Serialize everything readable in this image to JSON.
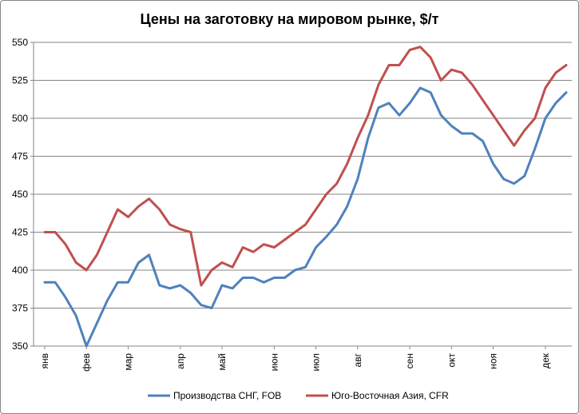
{
  "chart_data": {
    "type": "line",
    "title": "Цены на заготовку  на мировом рынке, $/т",
    "xlabel": "",
    "ylabel": "",
    "ylim": [
      350,
      550
    ],
    "yticks": [
      350,
      375,
      400,
      425,
      450,
      475,
      500,
      525,
      550
    ],
    "month_labels": [
      "янв",
      "фев",
      "мар",
      "апр",
      "май",
      "июн",
      "июл",
      "авг",
      "сен",
      "окт",
      "ноя",
      "дек"
    ],
    "month_positions": [
      0,
      4,
      8,
      13,
      17,
      22,
      26,
      30,
      35,
      39,
      43,
      48
    ],
    "grid": true,
    "legend_position": "bottom",
    "series": [
      {
        "name": "Производства СНГ, FOB",
        "color": "#4F81BD",
        "values": [
          392,
          392,
          382,
          370,
          350,
          365,
          380,
          392,
          392,
          405,
          410,
          390,
          388,
          390,
          385,
          377,
          375,
          390,
          388,
          395,
          395,
          392,
          395,
          395,
          400,
          402,
          415,
          422,
          430,
          442,
          460,
          487,
          507,
          510,
          502,
          510,
          520,
          517,
          502,
          495,
          490,
          490,
          485,
          470,
          460,
          457,
          462,
          480,
          500,
          510,
          517
        ]
      },
      {
        "name": "Юго-Восточная Азия, CFR",
        "color": "#C0504D",
        "values": [
          425,
          425,
          417,
          405,
          400,
          410,
          425,
          440,
          435,
          442,
          447,
          440,
          430,
          427,
          425,
          390,
          400,
          405,
          402,
          415,
          412,
          417,
          415,
          420,
          425,
          430,
          440,
          450,
          457,
          470,
          487,
          502,
          522,
          535,
          535,
          545,
          547,
          540,
          525,
          532,
          530,
          522,
          512,
          502,
          492,
          482,
          492,
          500,
          520,
          530,
          535
        ]
      }
    ]
  }
}
